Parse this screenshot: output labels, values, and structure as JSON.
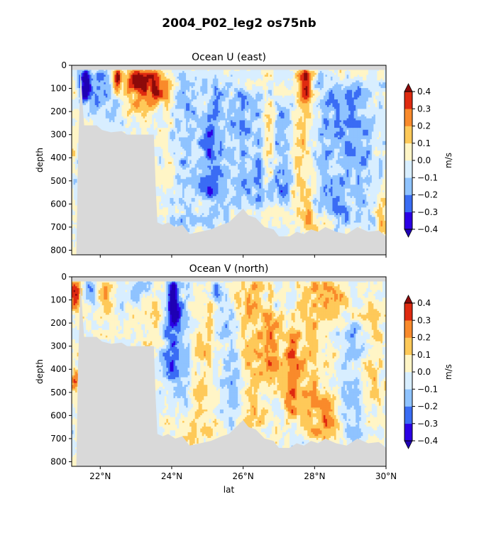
{
  "figure": {
    "title": "2004_P02_leg2 os75nb"
  },
  "chart_data": [
    {
      "type": "heatmap",
      "title": "Ocean U (east)",
      "ylabel": "depth",
      "xlabel": "",
      "xlim": [
        21.2,
        30.0
      ],
      "ylim": [
        820,
        0
      ],
      "x_ticks": [
        22,
        24,
        26,
        28,
        30
      ],
      "x_tick_labels": [
        "",
        "",
        "",
        "",
        ""
      ],
      "y_ticks": [
        0,
        100,
        200,
        300,
        400,
        500,
        600,
        700,
        800
      ],
      "y_tick_labels": [
        "0",
        "100",
        "200",
        "300",
        "400",
        "500",
        "600",
        "700",
        "800"
      ],
      "colorbar": {
        "label": "m/s",
        "levels": [
          -0.4,
          -0.3,
          -0.2,
          -0.1,
          0.0,
          0.1,
          0.2,
          0.3,
          0.4
        ],
        "tick_labels": [
          "−0.4",
          "−0.3",
          "−0.2",
          "−0.1",
          "0.0",
          "0.1",
          "0.2",
          "0.3",
          "0.4"
        ],
        "colors": [
          "#2b00e6",
          "#3a6cf4",
          "#8fc3ff",
          "#d8eeff",
          "#fff5c6",
          "#fec959",
          "#f98a2b",
          "#df2a10"
        ],
        "under_color": "#1f00b4",
        "over_color": "#8c0a0a"
      },
      "features": [
        {
          "lat": 21.55,
          "top": 20,
          "bottom": 170,
          "width": 0.14,
          "value": -0.38
        },
        {
          "lat": 21.65,
          "top": 20,
          "bottom": 120,
          "width": 0.12,
          "value": -0.32
        },
        {
          "lat": 21.9,
          "top": 20,
          "bottom": 200,
          "width": 0.18,
          "value": -0.22
        },
        {
          "lat": 22.35,
          "top": 20,
          "bottom": 260,
          "width": 0.25,
          "value": -0.15
        },
        {
          "lat": 22.45,
          "top": 20,
          "bottom": 130,
          "width": 0.1,
          "value": 0.38
        },
        {
          "lat": 22.5,
          "top": 20,
          "bottom": 80,
          "width": 0.08,
          "value": 0.42
        },
        {
          "lat": 23.0,
          "top": 20,
          "bottom": 110,
          "width": 0.3,
          "value": 0.35
        },
        {
          "lat": 23.2,
          "top": 20,
          "bottom": 200,
          "width": 0.45,
          "value": 0.2
        },
        {
          "lat": 23.6,
          "top": 20,
          "bottom": 150,
          "width": 0.3,
          "value": 0.28
        },
        {
          "lat": 24.4,
          "top": 50,
          "bottom": 700,
          "width": 0.3,
          "value": -0.13
        },
        {
          "lat": 25.0,
          "top": 200,
          "bottom": 600,
          "width": 0.25,
          "value": -0.17
        },
        {
          "lat": 25.3,
          "top": 60,
          "bottom": 700,
          "width": 0.35,
          "value": -0.14
        },
        {
          "lat": 25.9,
          "top": 100,
          "bottom": 650,
          "width": 0.25,
          "value": -0.13
        },
        {
          "lat": 26.4,
          "top": 120,
          "bottom": 620,
          "width": 0.3,
          "value": -0.15
        },
        {
          "lat": 26.75,
          "top": 150,
          "bottom": 500,
          "width": 0.18,
          "value": 0.12
        },
        {
          "lat": 27.1,
          "top": 130,
          "bottom": 600,
          "width": 0.3,
          "value": -0.18
        },
        {
          "lat": 27.6,
          "top": 20,
          "bottom": 650,
          "width": 0.3,
          "value": 0.13
        },
        {
          "lat": 27.75,
          "top": 20,
          "bottom": 160,
          "width": 0.15,
          "value": 0.32
        },
        {
          "lat": 27.85,
          "top": 620,
          "bottom": 720,
          "width": 0.3,
          "value": 0.16
        },
        {
          "lat": 28.3,
          "top": 50,
          "bottom": 650,
          "width": 0.3,
          "value": -0.12
        },
        {
          "lat": 28.8,
          "top": 80,
          "bottom": 700,
          "width": 0.35,
          "value": -0.15
        },
        {
          "lat": 29.4,
          "top": 60,
          "bottom": 680,
          "width": 0.35,
          "value": -0.13
        },
        {
          "lat": 29.9,
          "top": 500,
          "bottom": 720,
          "width": 0.2,
          "value": 0.12
        }
      ]
    },
    {
      "type": "heatmap",
      "title": "Ocean V (north)",
      "ylabel": "depth",
      "xlabel": "lat",
      "xlim": [
        21.2,
        30.0
      ],
      "ylim": [
        820,
        0
      ],
      "x_ticks": [
        22,
        24,
        26,
        28,
        30
      ],
      "x_tick_labels": [
        "22°N",
        "24°N",
        "26°N",
        "28°N",
        "30°N"
      ],
      "y_ticks": [
        0,
        100,
        200,
        300,
        400,
        500,
        600,
        700,
        800
      ],
      "y_tick_labels": [
        "0",
        "100",
        "200",
        "300",
        "400",
        "500",
        "600",
        "700",
        "800"
      ],
      "colorbar": {
        "label": "m/s",
        "levels": [
          -0.4,
          -0.3,
          -0.2,
          -0.1,
          0.0,
          0.1,
          0.2,
          0.3,
          0.4
        ],
        "tick_labels": [
          "−0.4",
          "−0.3",
          "−0.2",
          "−0.1",
          "0.0",
          "0.1",
          "0.2",
          "0.3",
          "0.4"
        ],
        "colors": [
          "#2b00e6",
          "#3a6cf4",
          "#8fc3ff",
          "#d8eeff",
          "#fff5c6",
          "#fec959",
          "#f98a2b",
          "#df2a10"
        ],
        "under_color": "#1f00b4",
        "over_color": "#8c0a0a"
      },
      "features": [
        {
          "lat": 21.3,
          "top": 20,
          "bottom": 150,
          "width": 0.15,
          "value": 0.33
        },
        {
          "lat": 21.3,
          "top": 420,
          "bottom": 480,
          "width": 0.12,
          "value": 0.32
        },
        {
          "lat": 21.75,
          "top": 20,
          "bottom": 120,
          "width": 0.15,
          "value": -0.2
        },
        {
          "lat": 22.2,
          "top": 20,
          "bottom": 200,
          "width": 0.3,
          "value": 0.13
        },
        {
          "lat": 23.0,
          "top": 20,
          "bottom": 120,
          "width": 0.35,
          "value": -0.14
        },
        {
          "lat": 23.6,
          "top": 50,
          "bottom": 300,
          "width": 0.25,
          "value": 0.12
        },
        {
          "lat": 24.0,
          "top": 20,
          "bottom": 450,
          "width": 0.28,
          "value": -0.23
        },
        {
          "lat": 24.05,
          "top": 20,
          "bottom": 200,
          "width": 0.12,
          "value": -0.34
        },
        {
          "lat": 24.35,
          "top": 100,
          "bottom": 600,
          "width": 0.3,
          "value": -0.13
        },
        {
          "lat": 24.9,
          "top": 50,
          "bottom": 700,
          "width": 0.35,
          "value": 0.12
        },
        {
          "lat": 25.3,
          "top": 20,
          "bottom": 100,
          "width": 0.2,
          "value": -0.2
        },
        {
          "lat": 25.6,
          "top": 120,
          "bottom": 650,
          "width": 0.3,
          "value": -0.12
        },
        {
          "lat": 26.3,
          "top": 20,
          "bottom": 700,
          "width": 0.4,
          "value": 0.13
        },
        {
          "lat": 26.8,
          "top": 150,
          "bottom": 450,
          "width": 0.25,
          "value": 0.2
        },
        {
          "lat": 27.35,
          "top": 250,
          "bottom": 600,
          "width": 0.25,
          "value": 0.22
        },
        {
          "lat": 27.9,
          "top": 20,
          "bottom": 700,
          "width": 0.45,
          "value": 0.14
        },
        {
          "lat": 28.5,
          "top": 20,
          "bottom": 150,
          "width": 0.35,
          "value": 0.21
        },
        {
          "lat": 28.4,
          "top": 520,
          "bottom": 720,
          "width": 0.3,
          "value": 0.19
        },
        {
          "lat": 29.1,
          "top": 200,
          "bottom": 700,
          "width": 0.35,
          "value": -0.12
        },
        {
          "lat": 29.6,
          "top": 80,
          "bottom": 550,
          "width": 0.35,
          "value": 0.12
        }
      ]
    }
  ],
  "bathymetry": {
    "surface_depth": 20,
    "bottom_depth": [
      [
        21.2,
        820
      ],
      [
        21.33,
        820
      ],
      [
        21.38,
        380
      ],
      [
        21.45,
        20
      ],
      [
        21.52,
        200
      ],
      [
        21.55,
        260
      ],
      [
        21.9,
        260
      ],
      [
        22.05,
        280
      ],
      [
        22.3,
        290
      ],
      [
        22.6,
        285
      ],
      [
        22.75,
        300
      ],
      [
        23.5,
        300
      ],
      [
        23.55,
        520
      ],
      [
        23.6,
        680
      ],
      [
        23.75,
        690
      ],
      [
        23.9,
        680
      ],
      [
        24.1,
        700
      ],
      [
        24.3,
        690
      ],
      [
        24.5,
        730
      ],
      [
        24.8,
        720
      ],
      [
        25.1,
        710
      ],
      [
        25.4,
        690
      ],
      [
        25.6,
        680
      ],
      [
        25.8,
        650
      ],
      [
        26.0,
        620
      ],
      [
        26.15,
        650
      ],
      [
        26.35,
        660
      ],
      [
        26.6,
        700
      ],
      [
        26.85,
        710
      ],
      [
        27.0,
        740
      ],
      [
        27.3,
        740
      ],
      [
        27.5,
        720
      ],
      [
        27.7,
        730
      ],
      [
        27.9,
        710
      ],
      [
        28.1,
        720
      ],
      [
        28.3,
        700
      ],
      [
        28.6,
        720
      ],
      [
        28.9,
        730
      ],
      [
        29.2,
        700
      ],
      [
        29.5,
        720
      ],
      [
        29.8,
        715
      ],
      [
        30.0,
        740
      ],
      [
        30.0,
        820
      ]
    ],
    "mask_color": "#d9d9d9"
  }
}
